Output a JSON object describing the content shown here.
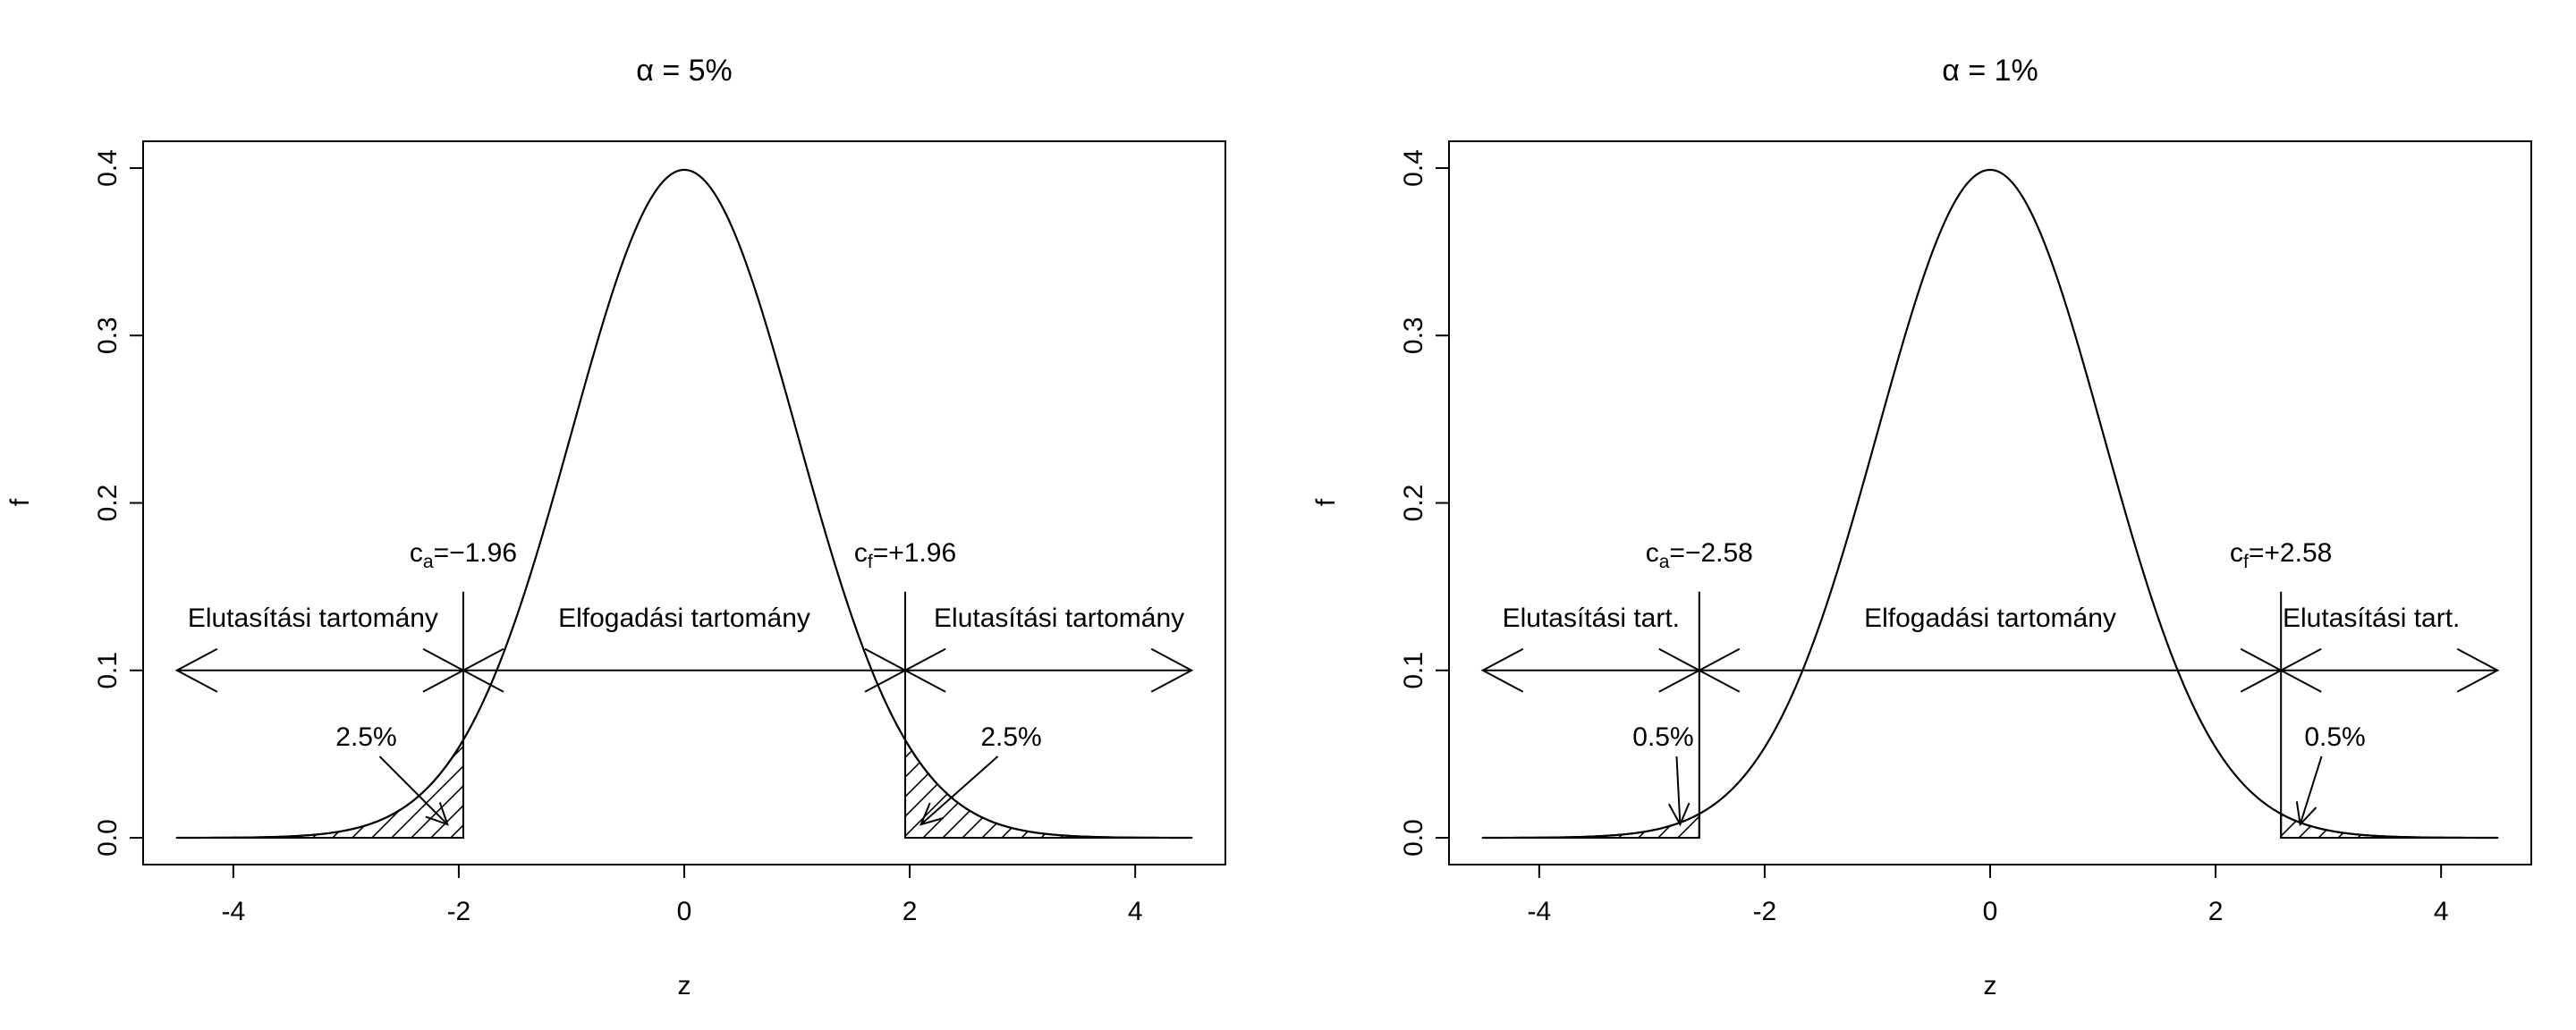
{
  "chart_data": [
    {
      "type": "area",
      "title": "α = 5%",
      "xlabel": "z",
      "ylabel": "f",
      "xlim": [
        -4.8,
        4.8
      ],
      "ylim": [
        -0.016,
        0.416
      ],
      "x_ticks": [
        -4,
        -2,
        0,
        2,
        4
      ],
      "x_tick_labels": [
        "-4",
        "-2",
        "0",
        "2",
        "4"
      ],
      "y_ticks": [
        0.0,
        0.1,
        0.2,
        0.3,
        0.4
      ],
      "y_tick_labels": [
        "0.0",
        "0.1",
        "0.2",
        "0.3",
        "0.4"
      ],
      "curve": {
        "name": "",
        "function": "standard normal density",
        "x_range": [
          -4.5,
          4.5
        ]
      },
      "critical_values": [
        -1.96,
        1.96
      ],
      "critical_labels": [
        {
          "sub": "a",
          "value": "−1.96",
          "prefix": "c"
        },
        {
          "sub": "f",
          "value": "+1.96",
          "prefix": "c"
        }
      ],
      "arrow_y": 0.1,
      "region_labels": [
        "Elutasítási tartomány",
        "Elfogadási tartomány",
        "Elutasítási tartomány"
      ],
      "tail_labels": [
        "2.5%",
        "2.5%"
      ],
      "grid": false
    },
    {
      "type": "area",
      "title": "α = 1%",
      "xlabel": "z",
      "ylabel": "f",
      "xlim": [
        -4.8,
        4.8
      ],
      "ylim": [
        -0.016,
        0.416
      ],
      "x_ticks": [
        -4,
        -2,
        0,
        2,
        4
      ],
      "x_tick_labels": [
        "-4",
        "-2",
        "0",
        "2",
        "4"
      ],
      "y_ticks": [
        0.0,
        0.1,
        0.2,
        0.3,
        0.4
      ],
      "y_tick_labels": [
        "0.0",
        "0.1",
        "0.2",
        "0.3",
        "0.4"
      ],
      "curve": {
        "name": "",
        "function": "standard normal density",
        "x_range": [
          -4.5,
          4.5
        ]
      },
      "critical_values": [
        -2.58,
        2.58
      ],
      "critical_labels": [
        {
          "sub": "a",
          "value": "−2.58",
          "prefix": "c"
        },
        {
          "sub": "f",
          "value": "+2.58",
          "prefix": "c"
        }
      ],
      "arrow_y": 0.1,
      "region_labels": [
        "Elutasítási tart.",
        "Elfogadási tartomány",
        "Elutasítási tart."
      ],
      "tail_labels": [
        "0.5%",
        "0.5%"
      ],
      "grid": false
    }
  ]
}
